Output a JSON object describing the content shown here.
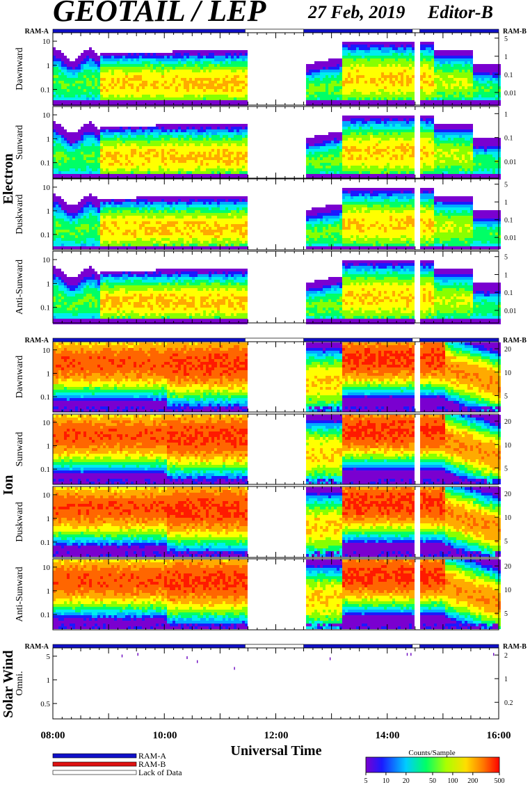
{
  "header": {
    "title": "GEOTAIL / LEP",
    "date": "27 Feb, 2019",
    "editor": "Editor-B"
  },
  "ram_labels": {
    "a": "RAM-A",
    "b": "RAM-B"
  },
  "groups": {
    "electron": "Electron",
    "ion": "Ion",
    "solar_wind": "Solar Wind"
  },
  "xaxis": {
    "label": "Universal Time",
    "ticks": [
      "08:00",
      "10:00",
      "12:00",
      "14:00",
      "16:00"
    ]
  },
  "legend": {
    "ram_a": "RAM-A",
    "ram_b": "RAM-B",
    "lack": "Lack of Data",
    "colorbar_title": "Counts/Sample",
    "colorbar_ticks": [
      "5",
      "10",
      "20",
      "50",
      "100",
      "200",
      "500"
    ]
  },
  "colors": {
    "ram_a": "#1010c8",
    "ram_b": "#dd1111",
    "lack": "#ffffff"
  },
  "chart_data": [
    {
      "type": "heatmap",
      "group": "Electron",
      "ylabel": "Dawnward",
      "x_range": [
        "08:00",
        "16:00"
      ],
      "left_ticks": [
        "10",
        "1",
        "0.1"
      ],
      "right_ticks": [
        "5",
        "1",
        "0.1",
        "0.01"
      ],
      "data_gaps": [
        [
          "11:27",
          "12:30"
        ],
        [
          "14:27",
          "14:35"
        ]
      ]
    },
    {
      "type": "heatmap",
      "group": "Electron",
      "ylabel": "Sunward",
      "x_range": [
        "08:00",
        "16:00"
      ],
      "left_ticks": [
        "10",
        "1",
        "0.1"
      ],
      "right_ticks": [
        "1",
        "0.1",
        "0.01"
      ],
      "data_gaps": [
        [
          "11:27",
          "12:30"
        ],
        [
          "14:27",
          "14:35"
        ]
      ]
    },
    {
      "type": "heatmap",
      "group": "Electron",
      "ylabel": "Duskward",
      "x_range": [
        "08:00",
        "16:00"
      ],
      "left_ticks": [
        "10",
        "1",
        "0.1"
      ],
      "right_ticks": [
        "5",
        "1",
        "0.1",
        "0.01"
      ],
      "data_gaps": [
        [
          "11:27",
          "12:30"
        ],
        [
          "14:27",
          "14:35"
        ]
      ]
    },
    {
      "type": "heatmap",
      "group": "Electron",
      "ylabel": "Anti-Sunward",
      "x_range": [
        "08:00",
        "16:00"
      ],
      "left_ticks": [
        "10",
        "1",
        "0.1"
      ],
      "right_ticks": [
        "5",
        "1",
        "0.1",
        "0.01"
      ],
      "data_gaps": [
        [
          "11:27",
          "12:30"
        ],
        [
          "14:27",
          "14:35"
        ]
      ]
    },
    {
      "type": "heatmap",
      "group": "Ion",
      "ylabel": "Dawnward",
      "x_range": [
        "08:00",
        "16:00"
      ],
      "left_ticks": [
        "10",
        "1",
        "0.1"
      ],
      "right_ticks": [
        "20",
        "10",
        "5"
      ],
      "data_gaps": [
        [
          "11:27",
          "12:30"
        ],
        [
          "14:27",
          "14:35"
        ]
      ]
    },
    {
      "type": "heatmap",
      "group": "Ion",
      "ylabel": "Sunward",
      "x_range": [
        "08:00",
        "16:00"
      ],
      "left_ticks": [
        "10",
        "1",
        "0.1"
      ],
      "right_ticks": [
        "20",
        "10",
        "5"
      ],
      "data_gaps": [
        [
          "11:27",
          "12:30"
        ],
        [
          "14:27",
          "14:35"
        ]
      ]
    },
    {
      "type": "heatmap",
      "group": "Ion",
      "ylabel": "Duskward",
      "x_range": [
        "08:00",
        "16:00"
      ],
      "left_ticks": [
        "10",
        "1",
        "0.1"
      ],
      "right_ticks": [
        "20",
        "10",
        "5"
      ],
      "data_gaps": [
        [
          "11:27",
          "12:30"
        ],
        [
          "14:27",
          "14:35"
        ]
      ]
    },
    {
      "type": "heatmap",
      "group": "Ion",
      "ylabel": "Anti-Sunward",
      "x_range": [
        "08:00",
        "16:00"
      ],
      "left_ticks": [
        "10",
        "1",
        "0.1"
      ],
      "right_ticks": [
        "20",
        "10",
        "5"
      ],
      "data_gaps": [
        [
          "11:27",
          "12:30"
        ],
        [
          "14:27",
          "14:35"
        ]
      ]
    },
    {
      "type": "scatter",
      "group": "Solar Wind",
      "ylabel": "Omni.",
      "x_range": [
        "08:00",
        "16:00"
      ],
      "left_ticks": [
        "5",
        "1",
        "0.5"
      ],
      "right_ticks": [
        "2",
        "1",
        "0.2"
      ],
      "points": [
        {
          "x": "09:14",
          "y": 6.0
        },
        {
          "x": "09:31",
          "y": 6.5
        },
        {
          "x": "10:24",
          "y": 5.5
        },
        {
          "x": "10:35",
          "y": 4.5
        },
        {
          "x": "11:15",
          "y": 3.2
        },
        {
          "x": "12:58",
          "y": 5.2
        },
        {
          "x": "14:21",
          "y": 6.5
        },
        {
          "x": "14:25",
          "y": 6.5
        },
        {
          "x": "15:54",
          "y": 6.5
        }
      ]
    }
  ]
}
